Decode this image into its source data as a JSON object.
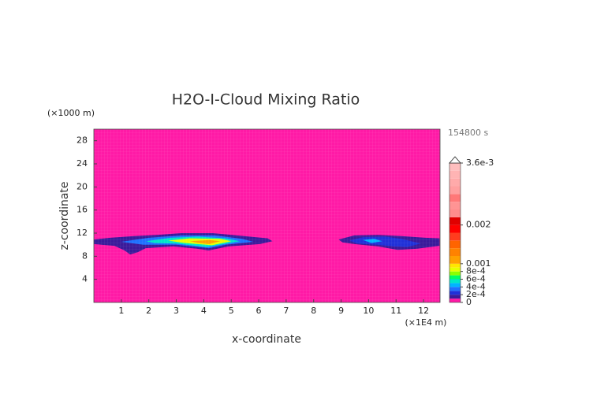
{
  "chart_data": {
    "type": "contour",
    "title": "H2O-I-Cloud Mixing Ratio",
    "x_label": "x-coordinate",
    "y_label": "z-coordinate",
    "x_unit": "(×1E4 m)",
    "y_unit": "(×1000 m)",
    "time_label": "154800 s",
    "xlim": [
      0,
      12.6
    ],
    "ylim": [
      0,
      30
    ],
    "xticks": [
      1,
      2,
      3,
      4,
      5,
      6,
      7,
      8,
      9,
      10,
      11,
      12
    ],
    "yticks": [
      4,
      8,
      12,
      16,
      20,
      24,
      28
    ],
    "colorbar": {
      "levels": [
        0,
        0.0001,
        0.0002,
        0.0003,
        0.0004,
        0.0005,
        0.0006,
        0.0007,
        0.0008,
        0.0009,
        0.001,
        0.0012,
        0.0014,
        0.0016,
        0.0018,
        0.002,
        0.0022,
        0.0024,
        0.0026,
        0.0028,
        0.003,
        0.0032,
        0.0034,
        0.0036
      ],
      "colors": [
        "#ff1aa6",
        "#3a1a9a",
        "#2030d8",
        "#1e70ff",
        "#00b4ff",
        "#00e6c8",
        "#00ff64",
        "#8cff00",
        "#e6ff00",
        "#ffe600",
        "#ffa000",
        "#ff8200",
        "#ff6400",
        "#ff3c1e",
        "#ff0000",
        "#e00000",
        "#ff8c8c",
        "#ff9494",
        "#ff7878",
        "#ffa0a0",
        "#ffaaaa",
        "#ffb4b4",
        "#ffbebe"
      ],
      "ticks": [
        0,
        {
          "value": 0.0002,
          "label": "2e-4"
        },
        {
          "value": 0.0004,
          "label": "4e-4"
        },
        {
          "value": 0.0006,
          "label": "6e-4"
        },
        {
          "value": 0.0008,
          "label": "8e-4"
        },
        0.001,
        0.002,
        {
          "value": 0.0036,
          "label": "3.6e-3"
        }
      ],
      "extend": "max"
    },
    "contours": [
      {
        "level": 0.0001,
        "x": [
          0,
          0.6,
          1.46,
          2.32,
          3.18,
          4.33,
          5.47,
          6.33,
          6.5,
          6.05,
          4.9,
          4.18,
          3.75,
          2.89,
          1.89,
          1.6,
          1.32,
          1.12,
          0.75,
          0
        ],
        "y": [
          10.9,
          11.2,
          11.5,
          11.7,
          12.0,
          12.0,
          11.5,
          11.1,
          10.6,
          10.1,
          9.7,
          9.0,
          9.3,
          9.7,
          9.4,
          8.7,
          8.3,
          9.0,
          9.8,
          10.1
        ]
      },
      {
        "level": 0.0003,
        "x": [
          1.0,
          2,
          3.2,
          4.4,
          5.4,
          5.8,
          4.8,
          4.2,
          3,
          1.8
        ],
        "y": [
          10.5,
          11.2,
          11.6,
          11.6,
          11.0,
          10.5,
          10.0,
          9.4,
          10,
          10.0
        ]
      },
      {
        "level": 0.0005,
        "x": [
          1.9,
          2.8,
          3.8,
          4.8,
          5.3,
          4.6,
          4.1,
          3,
          2.2
        ],
        "y": [
          10.6,
          11.2,
          11.4,
          11.1,
          10.6,
          10.0,
          9.6,
          10.2,
          10.3
        ]
      },
      {
        "level": 0.0008,
        "x": [
          2.7,
          3.5,
          4.6,
          5.0,
          4.3,
          3.3
        ],
        "y": [
          10.7,
          11.1,
          11.0,
          10.6,
          9.9,
          10.3
        ]
      },
      {
        "level": 0.001,
        "x": [
          3.5,
          4.2,
          4.6,
          4.2,
          3.8
        ],
        "y": [
          10.6,
          10.8,
          10.6,
          10.1,
          10.3
        ]
      },
      {
        "level": 0.0001,
        "x": [
          8.91,
          9.48,
          10.34,
          11.2,
          12.06,
          12.58,
          12.58,
          11.78,
          11.06,
          10.34,
          9.48,
          9.05
        ],
        "y": [
          10.9,
          11.6,
          11.7,
          11.5,
          11.2,
          11.1,
          9.8,
          9.3,
          9.1,
          9.7,
          10.1,
          10.4
        ]
      },
      {
        "level": 0.0002,
        "x": [
          9.3,
          9.8,
          10.6,
          11.2,
          11.9,
          11.4,
          10.9,
          10.3,
          9.6
        ],
        "y": [
          10.7,
          11.3,
          11.4,
          11.0,
          10.2,
          9.6,
          9.7,
          10.0,
          10.2
        ]
      },
      {
        "level": 0.0004,
        "x": [
          9.8,
          10.2,
          10.5,
          10.1
        ],
        "y": [
          10.8,
          11.0,
          10.6,
          10.3
        ]
      }
    ]
  }
}
